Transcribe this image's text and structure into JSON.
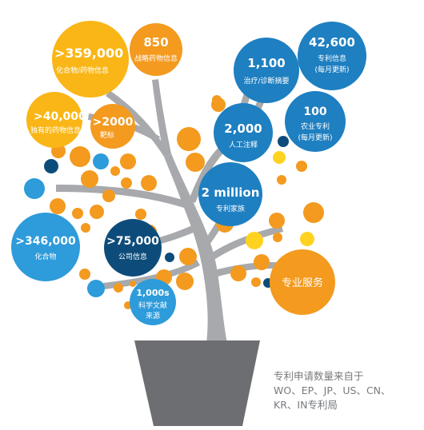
{
  "colors": {
    "orange": "#F39A1F",
    "gold": "#F9B616",
    "yellow": "#FFD21F",
    "light_blue": "#2E9BDA",
    "mid_blue": "#1E7FC1",
    "dark_navy": "#0D4C7A",
    "trunk_gray": "#A7A9AC",
    "pot_gray": "#6D6E71",
    "white": "#FFFFFF"
  },
  "bubbles": {
    "compounds_drug_info": {
      "value": ">359,000",
      "label": "化合物/药物信息"
    },
    "strategic_drug_info": {
      "value": "850",
      "label": "战略药物信息"
    },
    "pipeline_drug_info": {
      "value": ">40,000",
      "label": "独有的药物信息"
    },
    "targets": {
      "value": ">2000",
      "label": "靶标"
    },
    "patent_info": {
      "value": "42,600",
      "label_line1": "专利信息",
      "label_line2": "(每月更新)"
    },
    "therapy_abstracts": {
      "value": "1,100",
      "label": "治疗/诊断摘要"
    },
    "manual_annotations": {
      "value": "2,000",
      "label": "人工注释"
    },
    "agri_patents": {
      "value": "100",
      "label_line1": "农业专利",
      "label_line2": "(每月更新)"
    },
    "patent_families": {
      "value": "2 million",
      "label": "专利家族"
    },
    "compounds": {
      "value": ">346,000",
      "label": "化合物"
    },
    "company_info": {
      "value": ">75,000",
      "label": "公司信息"
    },
    "literature_sources": {
      "value": "1,000s",
      "label_line1": "科学文献",
      "label_line2": "来源"
    },
    "professional_services": {
      "label": "专业服务"
    }
  },
  "note": {
    "line1": "专利申请数量来自于",
    "line2": "WO、EP、JP、US、CN、",
    "line3": "KR、IN专利局"
  }
}
